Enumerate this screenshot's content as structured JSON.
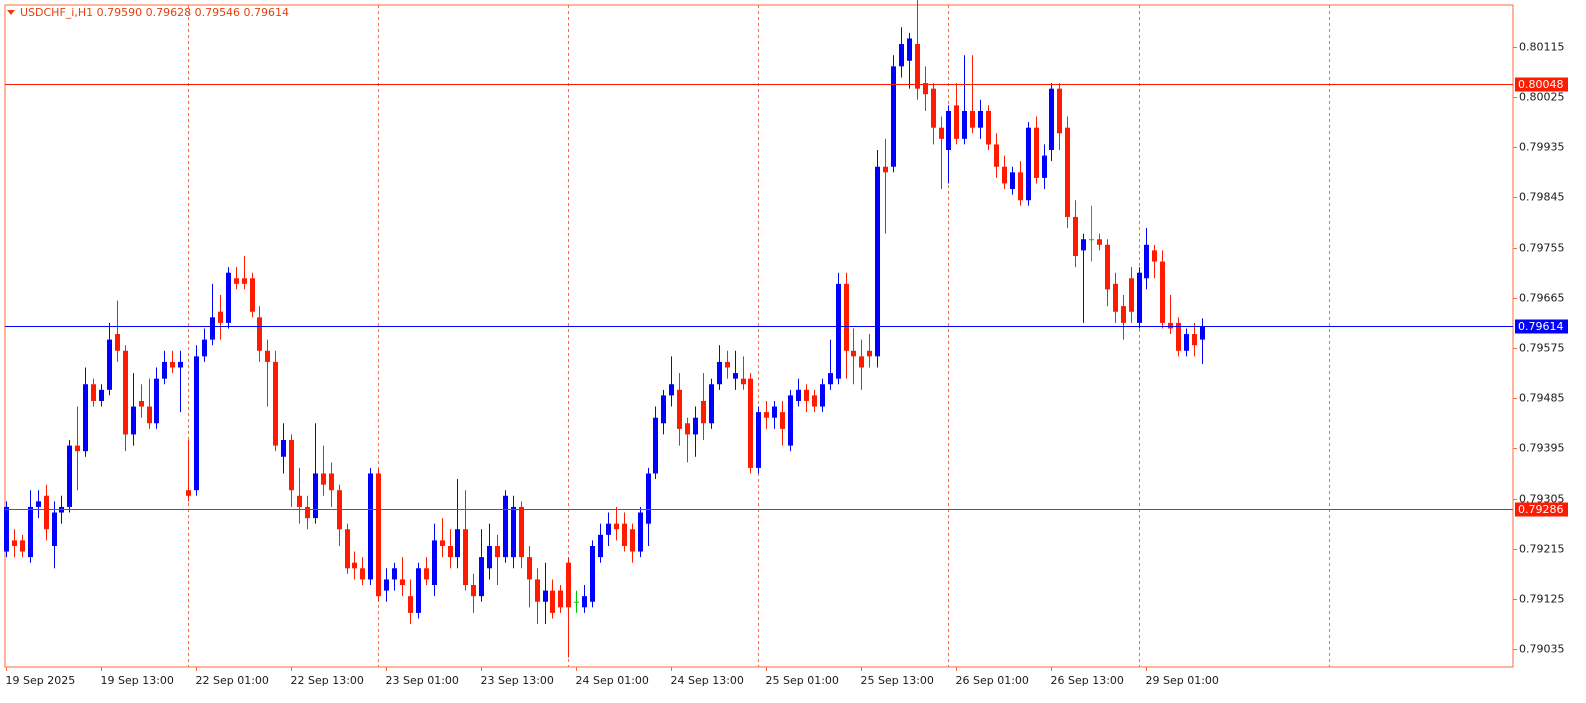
{
  "chart_data": {
    "type": "candlestick",
    "title": "USDCHF_i,H1  0.79590 0.79628 0.79546 0.79614",
    "categories": [
      "19 Sep 2025",
      null,
      null,
      null,
      null,
      null,
      null,
      null,
      null,
      null,
      null,
      null,
      "19 Sep 13:00",
      null,
      null,
      null,
      null,
      null,
      null,
      null,
      null,
      null,
      null,
      null,
      "22 Sep 01:00",
      null,
      null,
      null,
      null,
      null,
      null,
      null,
      null,
      null,
      null,
      null,
      "22 Sep 13:00",
      null,
      null,
      null,
      null,
      null,
      null,
      null,
      null,
      null,
      null,
      null,
      "23 Sep 01:00",
      null,
      null,
      null,
      null,
      null,
      null,
      null,
      null,
      null,
      null,
      null,
      "23 Sep 13:00",
      null,
      null,
      null,
      null,
      null,
      null,
      null,
      null,
      null,
      null,
      null,
      "24 Sep 01:00",
      null,
      null,
      null,
      null,
      null,
      null,
      null,
      null,
      null,
      null,
      null,
      "24 Sep 13:00",
      null,
      null,
      null,
      null,
      null,
      null,
      null,
      null,
      null,
      null,
      null,
      "25 Sep 01:00",
      null,
      null,
      null,
      null,
      null,
      null,
      null,
      null,
      null,
      null,
      null,
      "25 Sep 13:00",
      null,
      null,
      null,
      null,
      null,
      null,
      null,
      null,
      null,
      null,
      null,
      "26 Sep 01:00",
      null,
      null,
      null,
      null,
      null,
      null,
      null,
      null,
      null,
      null,
      null,
      "26 Sep 13:00",
      null,
      null,
      null,
      null,
      null,
      null,
      null,
      null,
      null,
      null,
      null,
      "29 Sep 01:00",
      null,
      null,
      null,
      null,
      null,
      null,
      null
    ],
    "open": [
      0.7921,
      0.7923,
      0.7923,
      0.792,
      0.7929,
      0.7931,
      0.7922,
      0.7928,
      0.7929,
      0.794,
      0.7939,
      0.7951,
      0.7948,
      0.795,
      0.796,
      0.7957,
      0.7942,
      0.7948,
      0.7947,
      0.7944,
      0.7952,
      0.7955,
      0.7954,
      0.7932,
      0.7932,
      0.7956,
      0.7959,
      0.7964,
      0.7962,
      0.797,
      0.797,
      0.797,
      0.7963,
      0.7957,
      0.7955,
      0.7938,
      0.7941,
      0.7931,
      0.7929,
      0.7927,
      0.7935,
      0.7935,
      0.7932,
      0.7925,
      0.7919,
      0.7918,
      0.7916,
      0.7935,
      0.7914,
      0.7916,
      0.7916,
      0.7913,
      0.791,
      0.7918,
      0.7915,
      0.7923,
      0.7922,
      0.792,
      0.7925,
      0.7915,
      0.7913,
      0.7918,
      0.7922,
      0.792,
      0.792,
      0.7929,
      0.792,
      0.7916,
      0.7912,
      0.7914,
      0.7914,
      0.7919,
      0.7912,
      0.7911,
      0.7912,
      0.792,
      0.7924,
      0.7926,
      0.7926,
      0.7925,
      0.7921,
      0.7926,
      0.7935,
      0.7944,
      0.7949,
      0.795,
      0.7944,
      0.7942,
      0.7948,
      0.7944,
      0.7951,
      0.7955,
      0.7952,
      0.7952,
      0.7952,
      0.7936,
      0.7946,
      0.7945,
      0.7946,
      0.794,
      0.7948,
      0.795,
      0.7949,
      0.7947,
      0.7951,
      0.7952,
      0.7969,
      0.7957,
      0.7956,
      0.7957,
      0.7956,
      0.799,
      0.799,
      0.8008,
      0.8009,
      0.8012,
      0.8005,
      0.8004,
      0.7997,
      0.7993,
      0.8001,
      0.7995,
      0.8,
      0.7997,
      0.8,
      0.7994,
      0.799,
      0.7986,
      0.7989,
      0.7984,
      0.7997,
      0.7988,
      0.7993,
      0.8004,
      0.7997,
      0.7981,
      0.7975,
      0.7977,
      0.7977,
      0.7976,
      0.7969,
      0.7965,
      0.797,
      0.7962,
      0.797,
      0.7975,
      0.7973,
      0.7962,
      0.7962,
      0.7957,
      0.796,
      0.7959
    ],
    "high": [
      0.793,
      0.7925,
      0.7924,
      0.7932,
      0.7932,
      0.7933,
      0.793,
      0.7931,
      0.7941,
      0.7947,
      0.7954,
      0.7952,
      0.7951,
      0.7962,
      0.7966,
      0.7958,
      0.7953,
      0.7951,
      0.7952,
      0.7954,
      0.7957,
      0.7957,
      0.7957,
      0.7941,
      0.7958,
      0.7961,
      0.7969,
      0.7967,
      0.7972,
      0.7972,
      0.7974,
      0.7971,
      0.7965,
      0.7959,
      0.7957,
      0.7944,
      0.7942,
      0.7936,
      0.7931,
      0.7944,
      0.794,
      0.7937,
      0.7933,
      0.7926,
      0.7921,
      0.792,
      0.7936,
      0.7936,
      0.7918,
      0.7919,
      0.792,
      0.7916,
      0.7919,
      0.792,
      0.7926,
      0.7927,
      0.7925,
      0.7934,
      0.7932,
      0.7917,
      0.7925,
      0.7926,
      0.7924,
      0.7932,
      0.7931,
      0.793,
      0.7922,
      0.7918,
      0.7919,
      0.7916,
      0.7915,
      0.792,
      0.7914,
      0.7915,
      0.7923,
      0.7926,
      0.7928,
      0.7929,
      0.7928,
      0.7926,
      0.7929,
      0.7936,
      0.7947,
      0.795,
      0.7956,
      0.7953,
      0.7945,
      0.7947,
      0.7953,
      0.7952,
      0.7958,
      0.7957,
      0.7957,
      0.7956,
      0.7953,
      0.7947,
      0.7948,
      0.7948,
      0.7948,
      0.795,
      0.7952,
      0.7951,
      0.795,
      0.7952,
      0.7959,
      0.7971,
      0.7971,
      0.7961,
      0.7959,
      0.796,
      0.7993,
      0.7995,
      0.801,
      0.8015,
      0.8014,
      0.802,
      0.8008,
      0.8005,
      0.7999,
      0.8001,
      0.8005,
      0.801,
      0.801,
      0.8002,
      0.8001,
      0.7996,
      0.7992,
      0.799,
      0.7991,
      0.7998,
      0.7999,
      0.7994,
      0.8005,
      0.8005,
      0.7999,
      0.7984,
      0.7978,
      0.7983,
      0.7978,
      0.7977,
      0.7971,
      0.7967,
      0.7972,
      0.7972,
      0.7979,
      0.7976,
      0.7975,
      0.7967,
      0.7963,
      0.7961,
      0.7962,
      0.79628
    ],
    "low": [
      0.792,
      0.792,
      0.792,
      0.7919,
      0.7927,
      0.7923,
      0.7918,
      0.7926,
      0.7928,
      0.7932,
      0.7938,
      0.7947,
      0.7947,
      0.7949,
      0.7955,
      0.7939,
      0.794,
      0.7945,
      0.7943,
      0.7943,
      0.7951,
      0.7953,
      0.7946,
      0.793,
      0.7931,
      0.7955,
      0.7958,
      0.7959,
      0.7961,
      0.7968,
      0.7968,
      0.7963,
      0.7955,
      0.7947,
      0.7939,
      0.7935,
      0.7929,
      0.7926,
      0.7925,
      0.7926,
      0.7931,
      0.7929,
      0.7922,
      0.7917,
      0.7916,
      0.7915,
      0.7915,
      0.7912,
      0.7912,
      0.7914,
      0.7913,
      0.7908,
      0.7909,
      0.7915,
      0.7913,
      0.792,
      0.7918,
      0.7918,
      0.7914,
      0.791,
      0.7912,
      0.7916,
      0.7915,
      0.7919,
      0.7918,
      0.7918,
      0.7911,
      0.7908,
      0.7908,
      0.7909,
      0.791,
      0.7902,
      0.791,
      0.791,
      0.7911,
      0.7919,
      0.7922,
      0.7923,
      0.7921,
      0.7919,
      0.792,
      0.7922,
      0.7934,
      0.7942,
      0.7947,
      0.794,
      0.7937,
      0.7938,
      0.7941,
      0.7943,
      0.795,
      0.7952,
      0.795,
      0.795,
      0.7935,
      0.7935,
      0.7943,
      0.7943,
      0.794,
      0.7939,
      0.7947,
      0.7946,
      0.7946,
      0.7946,
      0.795,
      0.7951,
      0.7952,
      0.7951,
      0.795,
      0.7954,
      0.7954,
      0.7978,
      0.7989,
      0.8006,
      0.8004,
      0.8002,
      0.8,
      0.7994,
      0.7986,
      0.7987,
      0.7994,
      0.7994,
      0.7996,
      0.7995,
      0.7993,
      0.7988,
      0.7986,
      0.7985,
      0.7983,
      0.7983,
      0.7987,
      0.7986,
      0.7991,
      0.7993,
      0.7979,
      0.7972,
      0.7962,
      0.7973,
      0.7975,
      0.7965,
      0.7962,
      0.7959,
      0.7962,
      0.7961,
      0.7968,
      0.797,
      0.7961,
      0.796,
      0.7956,
      0.7956,
      0.7956,
      0.79546
    ],
    "close": [
      0.7929,
      0.7922,
      0.7921,
      0.7929,
      0.793,
      0.7925,
      0.7928,
      0.7929,
      0.794,
      0.7939,
      0.7951,
      0.7948,
      0.795,
      0.7959,
      0.7957,
      0.7942,
      0.7947,
      0.7947,
      0.7944,
      0.7952,
      0.7955,
      0.7954,
      0.7955,
      0.7931,
      0.7956,
      0.7959,
      0.7963,
      0.7962,
      0.7971,
      0.7969,
      0.7969,
      0.7964,
      0.7957,
      0.7955,
      0.794,
      0.7941,
      0.7932,
      0.7929,
      0.7927,
      0.7935,
      0.7933,
      0.7932,
      0.7925,
      0.7918,
      0.7918,
      0.7916,
      0.7935,
      0.7913,
      0.7916,
      0.7918,
      0.7915,
      0.791,
      0.7918,
      0.7916,
      0.7923,
      0.7922,
      0.792,
      0.7925,
      0.7915,
      0.7913,
      0.792,
      0.7922,
      0.792,
      0.7931,
      0.7929,
      0.792,
      0.7916,
      0.7912,
      0.7914,
      0.791,
      0.7911,
      0.7911,
      0.7912,
      0.7913,
      0.7922,
      0.7924,
      0.7926,
      0.7925,
      0.7922,
      0.7921,
      0.7928,
      0.7935,
      0.7945,
      0.7949,
      0.7951,
      0.7943,
      0.7942,
      0.7945,
      0.7944,
      0.7951,
      0.7955,
      0.7954,
      0.7953,
      0.7951,
      0.7936,
      0.7946,
      0.7945,
      0.7947,
      0.7943,
      0.7949,
      0.795,
      0.7948,
      0.7947,
      0.7951,
      0.7953,
      0.7969,
      0.7957,
      0.7956,
      0.7954,
      0.7956,
      0.799,
      0.7989,
      0.8008,
      0.8012,
      0.8013,
      0.8004,
      0.8003,
      0.7997,
      0.7995,
      0.8,
      0.7995,
      0.8,
      0.7997,
      0.8,
      0.7994,
      0.799,
      0.7987,
      0.7989,
      0.7984,
      0.7997,
      0.7988,
      0.7992,
      0.8004,
      0.7996,
      0.7981,
      0.7974,
      0.7977,
      0.7977,
      0.7976,
      0.7968,
      0.7964,
      0.7962,
      0.7964,
      0.7971,
      0.7976,
      0.7973,
      0.7962,
      0.7961,
      0.7957,
      0.796,
      0.7958,
      0.79614
    ],
    "up_color": "#0000ff",
    "down_color": "#ff1a00",
    "doji_color": "#00c800",
    "ylim": [
      0.79003,
      0.8019
    ],
    "yticks": [
      0.80115,
      0.80025,
      0.79935,
      0.79845,
      0.79755,
      0.79665,
      0.79575,
      0.79485,
      0.79395,
      0.79305,
      0.79215,
      0.79125,
      0.79035
    ],
    "hlines": [
      {
        "value": 0.80048,
        "color": "#ff1a00"
      },
      {
        "value": 0.79614,
        "color": "#0000ff"
      },
      {
        "value": 0.79286,
        "color": "#ff1a00"
      }
    ]
  }
}
